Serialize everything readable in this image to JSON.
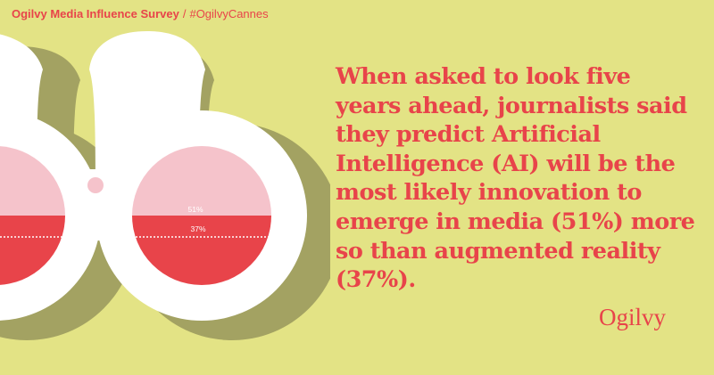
{
  "header": {
    "title": "Ogilvy Media Influence Survey",
    "separator": "/",
    "hashtag": "#OgilvyCannes"
  },
  "headline": "When asked to look five years ahead, journalists said they predict Artificial Intelligence (AI) will be the most likely innovation to emerge in media (51%) more so than augmented reality (37%).",
  "binoculars": {
    "ai_label": "51%",
    "ar_label": "37%",
    "ai_value": 51,
    "ar_value": 37
  },
  "logo": "Ogilvy",
  "colors": {
    "background": "#e3e385",
    "accent": "#e8444a",
    "shadow": "#a3a262",
    "lens_light": "#f5c3cb",
    "frame": "#ffffff"
  }
}
